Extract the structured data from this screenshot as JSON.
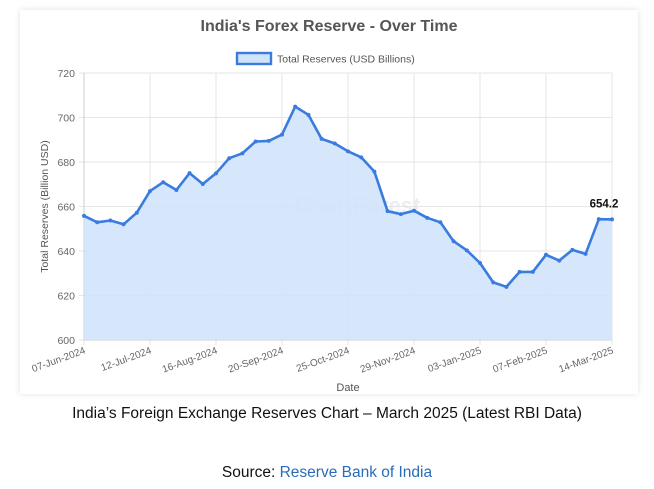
{
  "caption": "India’s Foreign Exchange Reserves Chart – March 2025 (Latest RBI Data)",
  "source": {
    "label": "Source:",
    "link_text": "Reserve Bank of India"
  },
  "chart_data": {
    "type": "area",
    "title": "India's Forex Reserve - Over Time",
    "xlabel": "Date",
    "ylabel": "Total Reserves (Billion USD)",
    "ylim": [
      600,
      720
    ],
    "yticks": [
      600,
      620,
      640,
      660,
      680,
      700,
      720
    ],
    "watermark": "ChartForest",
    "legend_position": "top-center",
    "grid": true,
    "x_tick_labels": [
      "07-Jun-2024",
      "12-Jul-2024",
      "16-Aug-2024",
      "20-Sep-2024",
      "25-Oct-2024",
      "29-Nov-2024",
      "03-Jan-2025",
      "07-Feb-2025",
      "14-Mar-2025"
    ],
    "end_label": "654.2",
    "colors": {
      "line": "#3a7be0",
      "fill": "#cfe3fb"
    },
    "series": [
      {
        "name": "Total Reserves (USD Billions)",
        "values": [
          655.8,
          652.9,
          653.7,
          652.0,
          657.2,
          666.9,
          670.9,
          667.4,
          675.0,
          670.1,
          674.9,
          681.7,
          683.9,
          689.2,
          689.5,
          692.3,
          704.9,
          701.2,
          690.4,
          688.3,
          684.8,
          682.1,
          675.7,
          657.9,
          656.6,
          658.1,
          654.9,
          652.9,
          644.4,
          640.3,
          634.6,
          625.9,
          623.9,
          630.6,
          630.6,
          638.3,
          635.7,
          640.5,
          638.7,
          654.3,
          654.2
        ]
      }
    ]
  }
}
